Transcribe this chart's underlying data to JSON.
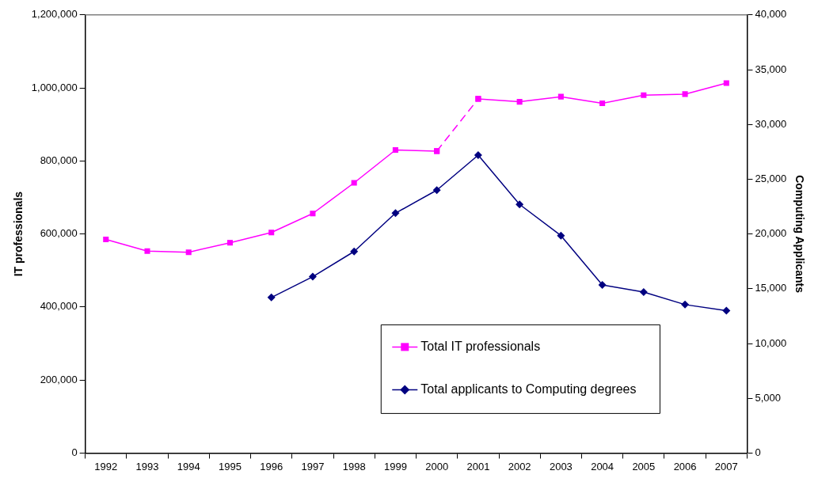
{
  "chart_data": {
    "type": "line",
    "categories": [
      "1992",
      "1993",
      "1994",
      "1995",
      "1996",
      "1997",
      "1998",
      "1999",
      "2000",
      "2001",
      "2002",
      "2003",
      "2004",
      "2005",
      "2006",
      "2007"
    ],
    "ylabel": "IT professionals",
    "y2label": "Computing Applicants",
    "ylim": [
      0,
      1200000
    ],
    "yticks": [
      {
        "value": 0,
        "label": "0"
      },
      {
        "value": 200000,
        "label": "200,000"
      },
      {
        "value": 400000,
        "label": "400,000"
      },
      {
        "value": 600000,
        "label": "600,000"
      },
      {
        "value": 800000,
        "label": "800,000"
      },
      {
        "value": 1000000,
        "label": "1,000,000"
      },
      {
        "value": 1200000,
        "label": "1,200,000"
      }
    ],
    "y2lim": [
      0,
      40000
    ],
    "y2ticks": [
      {
        "value": 0,
        "label": "0"
      },
      {
        "value": 5000,
        "label": "5,000"
      },
      {
        "value": 10000,
        "label": "10,000"
      },
      {
        "value": 15000,
        "label": "15,000"
      },
      {
        "value": 20000,
        "label": "20,000"
      },
      {
        "value": 25000,
        "label": "25,000"
      },
      {
        "value": 30000,
        "label": "30,000"
      },
      {
        "value": 35000,
        "label": "35,000"
      },
      {
        "value": 40000,
        "label": "40,000"
      }
    ],
    "grid": false,
    "legend": "bottom right",
    "series": [
      {
        "name": "Total IT professionals",
        "color": "#ff00ff",
        "marker": "square",
        "line_style": "solid",
        "values": [
          585000,
          553000,
          550000,
          576000,
          604000,
          656000,
          740000,
          830000,
          827000,
          null,
          null,
          null,
          null,
          null,
          null,
          null
        ]
      },
      {
        "color": "#ff00ff",
        "marker": "square",
        "line_style": "dashed",
        "values": [
          null,
          null,
          null,
          null,
          null,
          null,
          null,
          null,
          827000,
          970000,
          null,
          null,
          null,
          null,
          null,
          null
        ]
      },
      {
        "color": "#ff00ff",
        "marker": "square",
        "line_style": "solid",
        "values": [
          null,
          null,
          null,
          null,
          null,
          null,
          null,
          null,
          null,
          970000,
          962000,
          976000,
          958000,
          980000,
          983000,
          1013000
        ]
      },
      {
        "name": "Total applicants to Computing degrees",
        "color": "#000080",
        "marker": "diamond",
        "line_style": "solid",
        "axis": "y2",
        "values": [
          null,
          null,
          null,
          null,
          14200,
          16100,
          18400,
          21900,
          24000,
          27200,
          22700,
          19850,
          15350,
          14700,
          13550,
          13000
        ]
      }
    ]
  }
}
